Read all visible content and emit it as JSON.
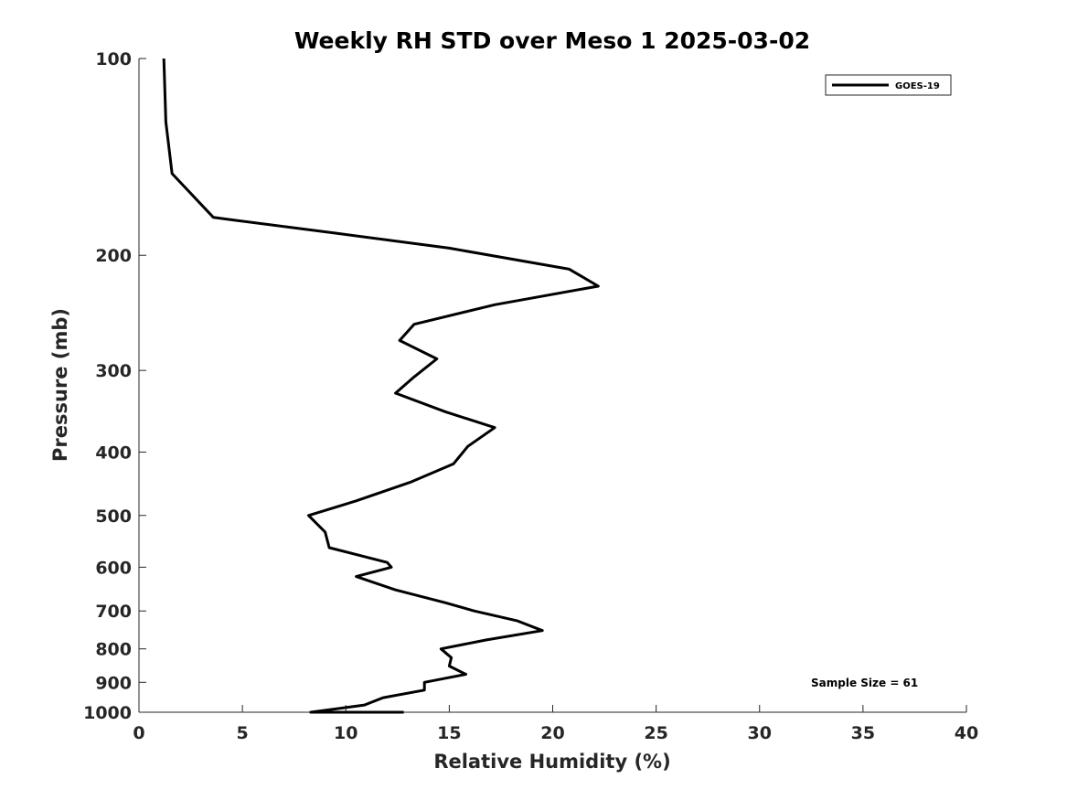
{
  "chart_data": {
    "type": "line",
    "title": "Weekly RH STD over Meso 1 2025-03-02",
    "xlabel": "Relative Humidity (%)",
    "ylabel": "Pressure (mb)",
    "xlim": [
      0,
      40
    ],
    "ylim": [
      100,
      1000
    ],
    "yscale": "log",
    "y_reversed": true,
    "xticks": [
      0,
      5,
      10,
      15,
      20,
      25,
      30,
      35,
      40
    ],
    "yticks": [
      100,
      200,
      300,
      400,
      500,
      600,
      700,
      800,
      900,
      1000
    ],
    "grid": false,
    "legend": {
      "placement": "top-right",
      "entries": [
        "GOES-19"
      ]
    },
    "annotation": "Sample Size = 61",
    "series": [
      {
        "name": "GOES-19",
        "color": "#000000",
        "x": [
          1.2,
          1.3,
          1.6,
          3.6,
          9.5,
          15.0,
          20.8,
          22.2,
          17.2,
          13.3,
          12.6,
          14.4,
          13.3,
          12.4,
          14.8,
          17.2,
          15.9,
          15.2,
          13.1,
          10.5,
          8.2,
          9.0,
          9.2,
          12.0,
          12.2,
          10.5,
          12.4,
          14.8,
          16.2,
          18.3,
          19.5,
          16.8,
          14.6,
          15.1,
          15.0,
          15.8,
          13.8,
          13.8,
          11.8,
          10.9,
          8.3,
          10.2,
          12.8
        ]
      }
    ],
    "y": [
      100,
      125,
      150,
      175,
      185,
      195,
      210,
      223,
      238,
      255,
      270,
      288,
      307,
      325,
      347,
      367,
      392,
      417,
      445,
      475,
      500,
      530,
      560,
      590,
      600,
      620,
      650,
      680,
      700,
      725,
      750,
      775,
      800,
      825,
      850,
      875,
      900,
      925,
      950,
      975,
      1000,
      1000,
      1000
    ]
  }
}
